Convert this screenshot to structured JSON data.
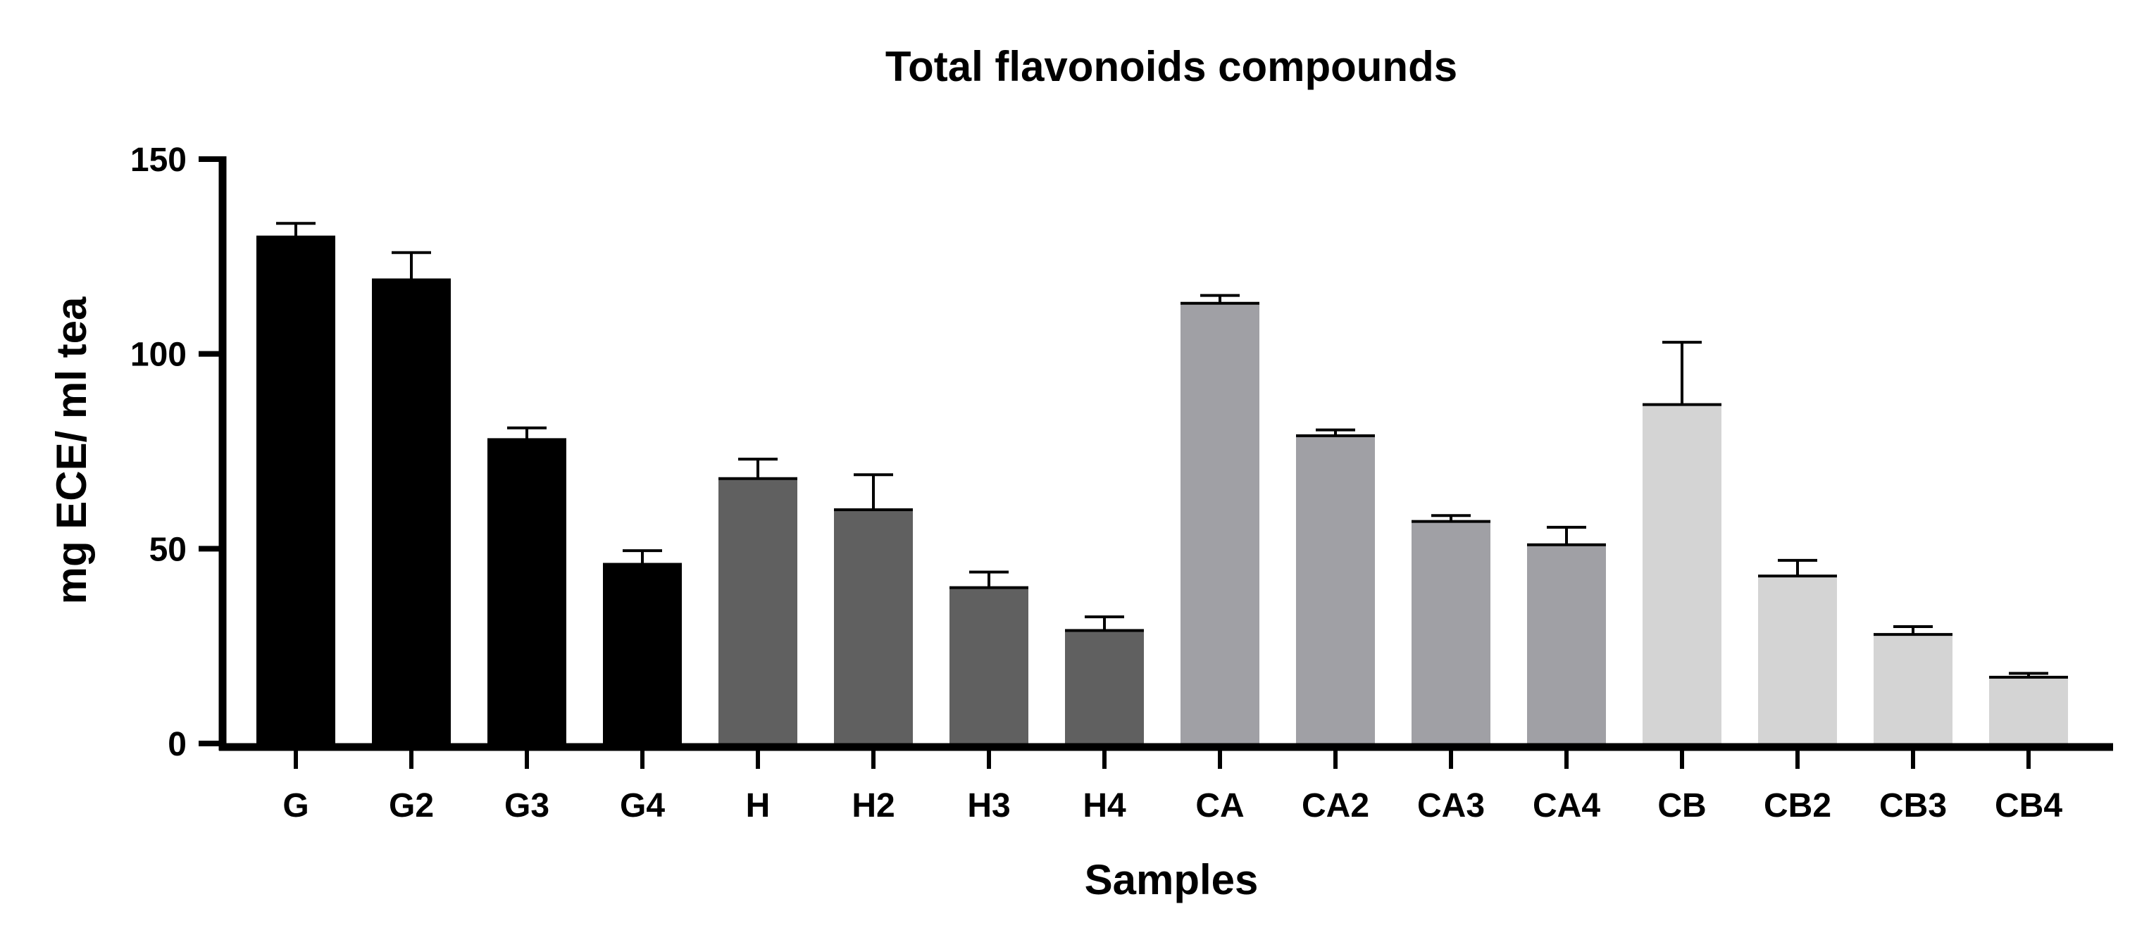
{
  "chart_data": {
    "type": "bar",
    "title": "Total flavonoids compounds",
    "xlabel": "Samples",
    "ylabel": "mg ECE/ ml tea",
    "ylim": [
      0,
      150
    ],
    "yticks": [
      0,
      50,
      100,
      150
    ],
    "grid": false,
    "legend": "none",
    "error_bars": true,
    "categories": [
      "G",
      "G2",
      "G3",
      "G4",
      "H",
      "H2",
      "H3",
      "H4",
      "CA",
      "CA2",
      "CA3",
      "CA4",
      "CB",
      "CB2",
      "CB3",
      "CB4"
    ],
    "values": [
      130,
      119,
      78,
      46,
      68,
      60,
      40,
      29,
      113,
      79,
      57,
      51,
      87,
      43,
      28,
      17
    ],
    "errors": [
      3.5,
      7,
      3,
      3.5,
      5,
      9,
      4,
      3.5,
      2,
      1.5,
      1.5,
      4.5,
      16,
      4,
      2,
      1
    ],
    "colors": [
      "#000000",
      "#000000",
      "#000000",
      "#000000",
      "#606060",
      "#606060",
      "#606060",
      "#606060",
      "#a0a0a5",
      "#a0a0a5",
      "#a0a0a5",
      "#a0a0a5",
      "#d4d4d4",
      "#d4d4d4",
      "#d4d4d4",
      "#d4d4d4"
    ]
  }
}
